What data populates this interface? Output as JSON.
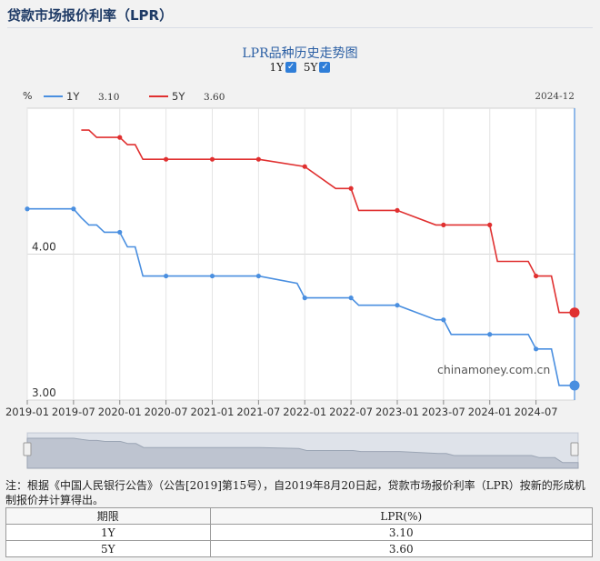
{
  "page": {
    "title": "贷款市场报价利率（LPR）"
  },
  "controls": {
    "toggles": [
      {
        "label": "1Y",
        "checked": true,
        "check_glyph": "✓"
      },
      {
        "label": "5Y",
        "checked": true,
        "check_glyph": "✓"
      }
    ]
  },
  "chart_data": {
    "type": "line",
    "title": "LPR品种历史走势图",
    "ylabel": "%",
    "ylim": [
      3.0,
      5.0
    ],
    "y_tick_labels": [
      {
        "value": 4.0,
        "label": "4.00"
      },
      {
        "value": 3.0,
        "label": "3.00"
      }
    ],
    "x_ticks": [
      "2019-01",
      "2019-07",
      "2020-01",
      "2020-07",
      "2021-01",
      "2021-07",
      "2022-01",
      "2022-07",
      "2023-01",
      "2023-07",
      "2024-01",
      "2024-07"
    ],
    "xlim": [
      "2019-01",
      "2024-12"
    ],
    "hover_label": "2024-12",
    "watermark": "chinamoney.com.cn",
    "grid": true,
    "legend_position": "top-left",
    "series": [
      {
        "name": "1Y",
        "legend_value": "3.10",
        "color": "#4a8fe0",
        "points": [
          [
            "2019-01",
            4.31
          ],
          [
            "2019-07",
            4.31
          ],
          [
            "2019-08",
            4.25
          ],
          [
            "2019-09",
            4.2
          ],
          [
            "2019-10",
            4.2
          ],
          [
            "2019-11",
            4.15
          ],
          [
            "2019-12",
            4.15
          ],
          [
            "2020-01",
            4.15
          ],
          [
            "2020-02",
            4.05
          ],
          [
            "2020-03",
            4.05
          ],
          [
            "2020-04",
            3.85
          ],
          [
            "2020-07",
            3.85
          ],
          [
            "2021-01",
            3.85
          ],
          [
            "2021-07",
            3.85
          ],
          [
            "2021-12",
            3.8
          ],
          [
            "2022-01",
            3.7
          ],
          [
            "2022-07",
            3.7
          ],
          [
            "2022-08",
            3.65
          ],
          [
            "2023-01",
            3.65
          ],
          [
            "2023-06",
            3.55
          ],
          [
            "2023-07",
            3.55
          ],
          [
            "2023-08",
            3.45
          ],
          [
            "2024-01",
            3.45
          ],
          [
            "2024-06",
            3.45
          ],
          [
            "2024-07",
            3.35
          ],
          [
            "2024-09",
            3.35
          ],
          [
            "2024-10",
            3.1
          ],
          [
            "2024-12",
            3.1
          ]
        ],
        "markers": [
          "2019-01",
          "2019-07",
          "2020-01",
          "2020-07",
          "2021-01",
          "2021-07",
          "2022-01",
          "2022-07",
          "2023-01",
          "2023-07",
          "2024-01",
          "2024-07",
          "2024-12"
        ]
      },
      {
        "name": "5Y",
        "legend_value": "3.60",
        "color": "#e03030",
        "points": [
          [
            "2019-08",
            4.85
          ],
          [
            "2019-09",
            4.85
          ],
          [
            "2019-10",
            4.8
          ],
          [
            "2019-11",
            4.8
          ],
          [
            "2019-12",
            4.8
          ],
          [
            "2020-01",
            4.8
          ],
          [
            "2020-02",
            4.75
          ],
          [
            "2020-03",
            4.75
          ],
          [
            "2020-04",
            4.65
          ],
          [
            "2020-07",
            4.65
          ],
          [
            "2021-01",
            4.65
          ],
          [
            "2021-07",
            4.65
          ],
          [
            "2022-01",
            4.6
          ],
          [
            "2022-05",
            4.45
          ],
          [
            "2022-07",
            4.45
          ],
          [
            "2022-08",
            4.3
          ],
          [
            "2023-01",
            4.3
          ],
          [
            "2023-06",
            4.2
          ],
          [
            "2023-07",
            4.2
          ],
          [
            "2024-01",
            4.2
          ],
          [
            "2024-02",
            3.95
          ],
          [
            "2024-06",
            3.95
          ],
          [
            "2024-07",
            3.85
          ],
          [
            "2024-09",
            3.85
          ],
          [
            "2024-10",
            3.6
          ],
          [
            "2024-12",
            3.6
          ]
        ],
        "markers": [
          "2020-01",
          "2020-07",
          "2021-01",
          "2021-07",
          "2022-01",
          "2022-07",
          "2023-01",
          "2023-07",
          "2024-01",
          "2024-07",
          "2024-12"
        ]
      }
    ]
  },
  "note": {
    "text": "注：根据《中国人民银行公告》（公告[2019]第15号），自2019年8月20日起，贷款市场报价利率（LPR）按新的形成机制报价并计算得出。"
  },
  "table": {
    "headers": [
      "期限",
      "LPR(%)"
    ],
    "rows": [
      [
        "1Y",
        "3.10"
      ],
      [
        "5Y",
        "3.60"
      ]
    ]
  }
}
